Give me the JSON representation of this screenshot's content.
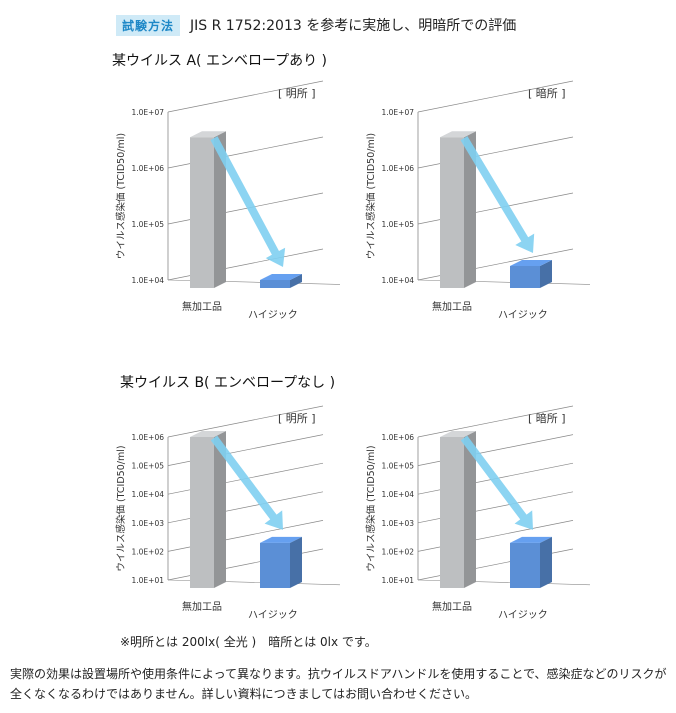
{
  "header": {
    "badge": "試験方法",
    "text": "JIS R 1752:2013 を参考に実施し、明暗所での評価"
  },
  "sections": [
    {
      "title": "某ウイルス A( エンベロープあり )"
    },
    {
      "title": "某ウイルス B( エンベロープなし )"
    }
  ],
  "colors": {
    "control_bar": "#bdbfc1",
    "product_bar": "#5b8fd6",
    "arrow": "#7fcff1",
    "grid": "#888888"
  },
  "chart_data": [
    {
      "type": "bar",
      "condition": "[ 明所 ]",
      "ylabel": "ウイルス感染価 (TCID50/ml)",
      "yticks": [
        "1.0E+04",
        "1.0E+05",
        "1.0E+06",
        "1.0E+07"
      ],
      "ylim_log10": [
        4,
        7
      ],
      "categories": [
        "無加工品",
        "ハイジック"
      ],
      "values_log10": [
        6.55,
        4.0
      ]
    },
    {
      "type": "bar",
      "condition": "[ 暗所 ]",
      "ylabel": "ウイルス感染価 (TCID50/ml)",
      "yticks": [
        "1.0E+04",
        "1.0E+05",
        "1.0E+06",
        "1.0E+07"
      ],
      "ylim_log10": [
        4,
        7
      ],
      "categories": [
        "無加工品",
        "ハイジック"
      ],
      "values_log10": [
        6.55,
        4.25
      ]
    },
    {
      "type": "bar",
      "condition": "[ 明所 ]",
      "ylabel": "ウイルス感染価 (TCID50/ml)",
      "yticks": [
        "1.0E+01",
        "1.0E+02",
        "1.0E+03",
        "1.0E+04",
        "1.0E+05",
        "1.0E+06"
      ],
      "ylim_log10": [
        1,
        6
      ],
      "categories": [
        "無加工品",
        "ハイジック"
      ],
      "values_log10": [
        6.0,
        2.3
      ]
    },
    {
      "type": "bar",
      "condition": "[ 暗所 ]",
      "ylabel": "ウイルス感染価 (TCID50/ml)",
      "yticks": [
        "1.0E+01",
        "1.0E+02",
        "1.0E+03",
        "1.0E+04",
        "1.0E+05",
        "1.0E+06"
      ],
      "ylim_log10": [
        1,
        6
      ],
      "categories": [
        "無加工品",
        "ハイジック"
      ],
      "values_log10": [
        6.0,
        2.3
      ]
    }
  ],
  "note": "※明所とは 200lx( 全光 )　暗所とは 0lx です。",
  "footer": "実際の効果は設置場所や使用条件によって異なります。抗ウイルスドアハンドルを使用することで、感染症などのリスクが全くなくなるわけではありません。詳しい資料につきましてはお問い合わせください。"
}
